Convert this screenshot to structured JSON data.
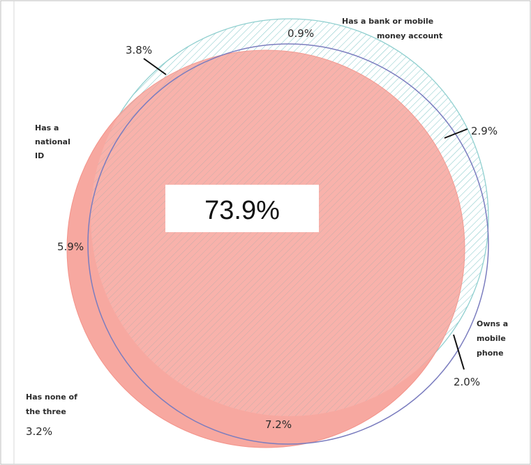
{
  "diagram": {
    "sets": {
      "national_id": {
        "label_lines": [
          "Has a",
          "national",
          "ID"
        ]
      },
      "bank_account": {
        "label_lines": [
          "Has a bank or mobile",
          "money account"
        ]
      },
      "mobile_phone": {
        "label_lines": [
          "Owns a",
          "mobile",
          "phone"
        ]
      },
      "none": {
        "label_lines": [
          "Has none of",
          "the three"
        ],
        "value": "3.2%"
      }
    },
    "values": {
      "center": "73.9%",
      "top_left": "3.8%",
      "top_bank_only": "0.9%",
      "right": "2.9%",
      "left": "5.9%",
      "bottom": "7.2%",
      "bottom_right": "2.0%"
    },
    "colors": {
      "id_fill": "#f7a8a0",
      "id_stroke": "#f3938a",
      "bank_hatch": "#7fc6c7",
      "bank_stroke": "#8fcfcf",
      "phone_stroke": "#7b7dbf",
      "frame": "#bcbcbc"
    }
  }
}
